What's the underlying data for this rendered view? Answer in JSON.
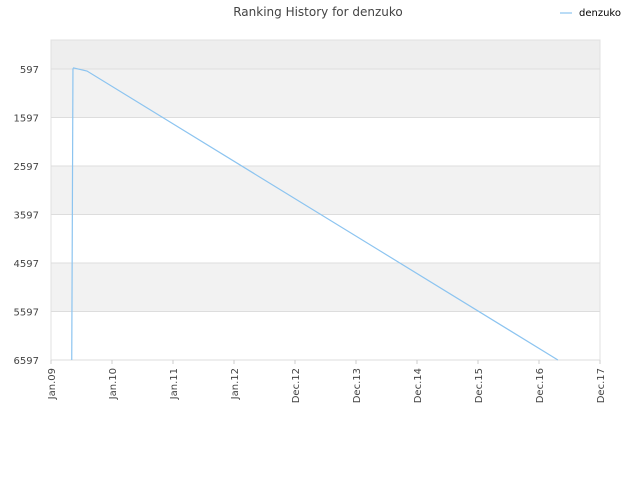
{
  "chart_data": {
    "type": "line",
    "title": "Ranking History for denzuko",
    "x": [
      0.34,
      0.35,
      0.36,
      0.37,
      0.59,
      8.31
    ],
    "series": [
      {
        "name": "denzuko",
        "color": "#8cc4f0",
        "values": [
          6597,
          3597,
          597,
          575,
          640,
          6597
        ]
      }
    ],
    "xlim": [
      0,
      9
    ],
    "xticks": [
      {
        "value": 0,
        "label": "Jan.09"
      },
      {
        "value": 1,
        "label": "Jan.10"
      },
      {
        "value": 2,
        "label": "Jan.11"
      },
      {
        "value": 3,
        "label": "Jan.12"
      },
      {
        "value": 4,
        "label": "Dec.12"
      },
      {
        "value": 5,
        "label": "Dec.13"
      },
      {
        "value": 6,
        "label": "Dec.14"
      },
      {
        "value": 7,
        "label": "Dec.15"
      },
      {
        "value": 8,
        "label": "Dec.16"
      },
      {
        "value": 9,
        "label": "Dec.17"
      }
    ],
    "ylim": [
      6597,
      0
    ],
    "yticks": [
      597,
      1597,
      2597,
      3597,
      4597,
      5597,
      6597
    ],
    "grid": true,
    "legend": "top-right"
  }
}
